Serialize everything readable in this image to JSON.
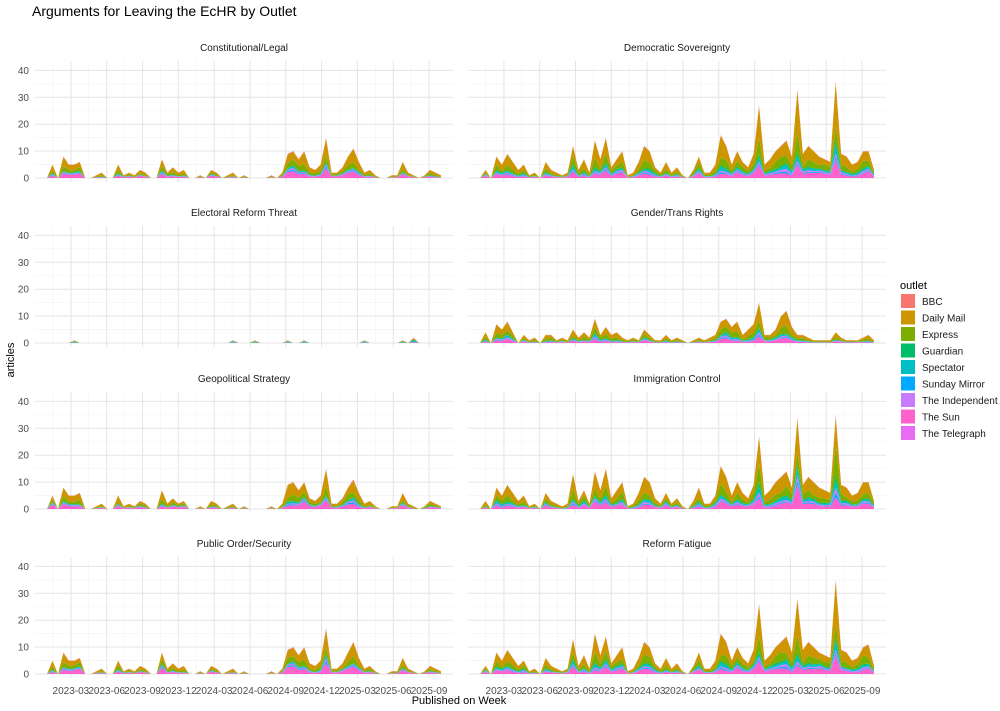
{
  "chart_data": {
    "type": "area",
    "stacked": true,
    "title": "Arguments for Leaving the EcHR by Outlet",
    "xlabel": "Published on Week",
    "ylabel": "articles",
    "ylim": [
      0,
      42
    ],
    "yticks": [
      0,
      10,
      20,
      30,
      40
    ],
    "x_start": "2023-01",
    "x_end": "2025-09",
    "x_tick_labels": [
      "2023-03",
      "2023-06",
      "2023-09",
      "2023-12",
      "2024-03",
      "2024-06",
      "2024-09",
      "2024-12",
      "2025-03",
      "2025-06",
      "2025-09"
    ],
    "x_tick_month_index": [
      2,
      5,
      8,
      11,
      14,
      17,
      20,
      23,
      26,
      29,
      32
    ],
    "grid": true,
    "legend_position": "right",
    "legend_title": "outlet",
    "outlets": [
      {
        "name": "BBC",
        "color": "#F8766D"
      },
      {
        "name": "Daily Mail",
        "color": "#CD9600"
      },
      {
        "name": "Express",
        "color": "#7CAE00"
      },
      {
        "name": "Guardian",
        "color": "#00BE67"
      },
      {
        "name": "Spectator",
        "color": "#00BFC4"
      },
      {
        "name": "Sunday Mirror",
        "color": "#00A9FF"
      },
      {
        "name": "The Independent",
        "color": "#C77CFF"
      },
      {
        "name": "The Sun",
        "color": "#FF61CC"
      },
      {
        "name": "The Telegraph",
        "color": "#E76BF3"
      }
    ],
    "panels": [
      {
        "name": "Constitutional/Legal",
        "totals": [
          0,
          5,
          0,
          8,
          5,
          5,
          6,
          0,
          0,
          1,
          2,
          0,
          0,
          5,
          1,
          2,
          1,
          3,
          2,
          0,
          0,
          7,
          2,
          4,
          2,
          3,
          0,
          0,
          1,
          0,
          3,
          2,
          0,
          1,
          2,
          0,
          1,
          0,
          0,
          0,
          0,
          1,
          0,
          2,
          9,
          10,
          7,
          10,
          4,
          3,
          5,
          15,
          2,
          2,
          4,
          8,
          11,
          6,
          2,
          3,
          1,
          0,
          0,
          1,
          1,
          6,
          2,
          1,
          0,
          1,
          3,
          2,
          1
        ],
        "mix": [
          0.03,
          0.45,
          0.25,
          0.02,
          0.06,
          0.04,
          0.05,
          0.25,
          0.0
        ]
      },
      {
        "name": "Democratic Sovereignty",
        "totals": [
          0,
          3,
          0,
          8,
          5,
          9,
          6,
          3,
          5,
          1,
          2,
          0,
          6,
          3,
          2,
          1,
          2,
          12,
          3,
          7,
          2,
          14,
          7,
          15,
          4,
          7,
          10,
          1,
          2,
          6,
          12,
          10,
          4,
          2,
          6,
          2,
          4,
          1,
          0,
          3,
          8,
          2,
          2,
          5,
          16,
          12,
          5,
          10,
          6,
          4,
          9,
          27,
          5,
          7,
          10,
          12,
          14,
          8,
          33,
          9,
          12,
          10,
          8,
          7,
          6,
          36,
          9,
          8,
          5,
          6,
          10,
          10,
          3
        ],
        "mix": [
          0.02,
          0.4,
          0.22,
          0.04,
          0.07,
          0.03,
          0.05,
          0.17,
          0.0
        ]
      },
      {
        "name": "Electoral Reform Threat",
        "totals": [
          0,
          0,
          0,
          0,
          0,
          1,
          0,
          0,
          0,
          0,
          0,
          0,
          0,
          0,
          0,
          0,
          0,
          0,
          0,
          0,
          0,
          0,
          0,
          0,
          0,
          0,
          0,
          0,
          0,
          0,
          0,
          0,
          0,
          0,
          1,
          0,
          0,
          0,
          1,
          0,
          0,
          0,
          0,
          0,
          1,
          0,
          0,
          1,
          0,
          0,
          0,
          0,
          0,
          0,
          0,
          0,
          0,
          0,
          1,
          0,
          0,
          0,
          0,
          0,
          0,
          1,
          0,
          2,
          0,
          0,
          0,
          0,
          0
        ],
        "mix": [
          0.1,
          0.2,
          0.1,
          0.2,
          0.2,
          0.0,
          0.1,
          0.1,
          0.0
        ]
      },
      {
        "name": "Gender/Trans Rights",
        "totals": [
          0,
          4,
          0,
          7,
          5,
          8,
          4,
          0,
          3,
          1,
          2,
          0,
          3,
          3,
          1,
          2,
          1,
          5,
          2,
          4,
          2,
          9,
          3,
          6,
          3,
          4,
          2,
          1,
          2,
          1,
          5,
          3,
          1,
          1,
          3,
          1,
          2,
          1,
          0,
          1,
          2,
          1,
          2,
          3,
          8,
          9,
          6,
          8,
          3,
          5,
          7,
          15,
          3,
          3,
          5,
          10,
          12,
          6,
          3,
          3,
          2,
          1,
          1,
          1,
          1,
          4,
          2,
          1,
          1,
          1,
          2,
          3,
          1
        ],
        "mix": [
          0.02,
          0.4,
          0.25,
          0.02,
          0.08,
          0.03,
          0.05,
          0.15,
          0.0
        ]
      },
      {
        "name": "Geopolitical Strategy",
        "totals": [
          0,
          5,
          0,
          8,
          5,
          5,
          6,
          0,
          0,
          1,
          2,
          0,
          0,
          5,
          1,
          2,
          1,
          3,
          2,
          0,
          0,
          7,
          2,
          4,
          2,
          3,
          0,
          0,
          1,
          0,
          3,
          2,
          0,
          1,
          2,
          0,
          1,
          0,
          0,
          0,
          0,
          1,
          0,
          2,
          9,
          10,
          7,
          10,
          4,
          3,
          5,
          15,
          2,
          2,
          4,
          8,
          11,
          6,
          2,
          3,
          1,
          0,
          0,
          1,
          1,
          6,
          2,
          1,
          0,
          1,
          3,
          2,
          1
        ],
        "mix": [
          0.03,
          0.45,
          0.25,
          0.02,
          0.06,
          0.04,
          0.05,
          0.25,
          0.0
        ]
      },
      {
        "name": "Immigration Control",
        "totals": [
          0,
          3,
          0,
          8,
          5,
          9,
          6,
          3,
          5,
          1,
          2,
          0,
          6,
          3,
          2,
          1,
          2,
          13,
          3,
          7,
          2,
          14,
          7,
          15,
          4,
          7,
          10,
          1,
          2,
          6,
          12,
          10,
          4,
          2,
          6,
          2,
          4,
          1,
          0,
          3,
          8,
          2,
          2,
          5,
          16,
          12,
          5,
          10,
          6,
          4,
          9,
          27,
          5,
          7,
          10,
          12,
          14,
          8,
          34,
          9,
          12,
          10,
          8,
          7,
          6,
          35,
          9,
          8,
          5,
          6,
          10,
          10,
          3
        ],
        "mix": [
          0.02,
          0.4,
          0.22,
          0.04,
          0.07,
          0.03,
          0.05,
          0.17,
          0.0
        ]
      },
      {
        "name": "Public Order/Security",
        "totals": [
          0,
          5,
          0,
          8,
          5,
          5,
          6,
          0,
          0,
          1,
          2,
          0,
          0,
          5,
          1,
          2,
          1,
          3,
          2,
          0,
          0,
          8,
          2,
          4,
          2,
          3,
          0,
          0,
          1,
          0,
          3,
          2,
          0,
          1,
          2,
          0,
          1,
          0,
          0,
          0,
          0,
          1,
          0,
          2,
          9,
          10,
          7,
          10,
          4,
          3,
          5,
          17,
          2,
          2,
          4,
          8,
          12,
          6,
          2,
          3,
          1,
          0,
          0,
          1,
          1,
          6,
          2,
          1,
          0,
          1,
          3,
          2,
          1
        ],
        "mix": [
          0.03,
          0.45,
          0.25,
          0.02,
          0.06,
          0.04,
          0.05,
          0.25,
          0.0
        ]
      },
      {
        "name": "Reform Fatigue",
        "totals": [
          0,
          3,
          0,
          8,
          5,
          9,
          6,
          3,
          5,
          1,
          2,
          0,
          6,
          3,
          2,
          1,
          2,
          13,
          3,
          7,
          2,
          15,
          7,
          14,
          4,
          7,
          10,
          1,
          2,
          6,
          12,
          10,
          4,
          2,
          6,
          2,
          4,
          1,
          0,
          3,
          8,
          2,
          2,
          5,
          15,
          12,
          5,
          10,
          6,
          4,
          9,
          26,
          5,
          7,
          10,
          12,
          14,
          8,
          28,
          9,
          12,
          10,
          8,
          7,
          6,
          35,
          9,
          8,
          5,
          6,
          10,
          11,
          3
        ],
        "mix": [
          0.02,
          0.4,
          0.22,
          0.04,
          0.07,
          0.03,
          0.05,
          0.17,
          0.0
        ]
      }
    ]
  }
}
